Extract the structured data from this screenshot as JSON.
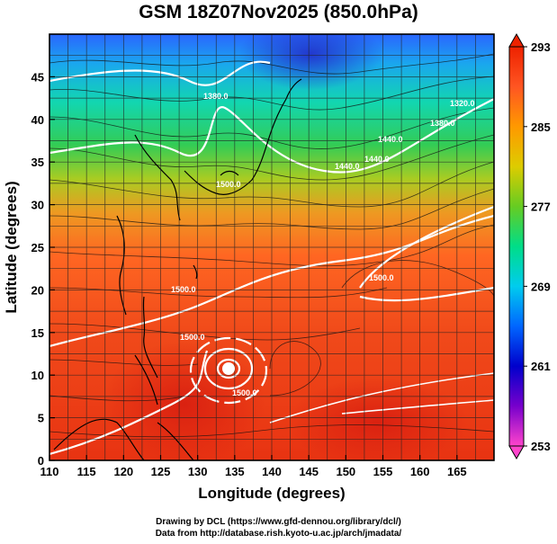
{
  "title": "GSM 18Z07Nov2025 (850.0hPa)",
  "x_axis": {
    "label": "Longitude (degrees)",
    "ticks": [
      "110",
      "115",
      "120",
      "125",
      "130",
      "135",
      "140",
      "145",
      "150",
      "155",
      "160",
      "165"
    ],
    "range": [
      110,
      170
    ]
  },
  "y_axis": {
    "label": "Latitude  (degrees)",
    "ticks": [
      "0",
      "5",
      "10",
      "15",
      "20",
      "25",
      "30",
      "35",
      "40",
      "45"
    ],
    "range": [
      0,
      50
    ]
  },
  "colorbar": {
    "ticks": [
      "293",
      "285",
      "277",
      "269",
      "261",
      "253"
    ],
    "range": [
      253,
      293
    ],
    "colors": [
      "#ff44cc",
      "#7700cc",
      "#0000cc",
      "#0066ff",
      "#00ccee",
      "#00dd88",
      "#33cc33",
      "#aacc00",
      "#ddcc00",
      "#ff9900",
      "#ff5522",
      "#ee2200"
    ]
  },
  "contour_labels": [
    "1320.0",
    "1380.0",
    "1380.0",
    "1440.0",
    "1440.0",
    "1500.0",
    "1500.0",
    "1500.0",
    "1500.0",
    "1500.0",
    "1440.0"
  ],
  "credits": {
    "line1": "Drawing by DCL (https://www.gfd-dennou.org/library/dcl/)",
    "line2": "Data from http://database.rish.kyoto-u.ac.jp/arch/jmadata/"
  },
  "grid": true
}
